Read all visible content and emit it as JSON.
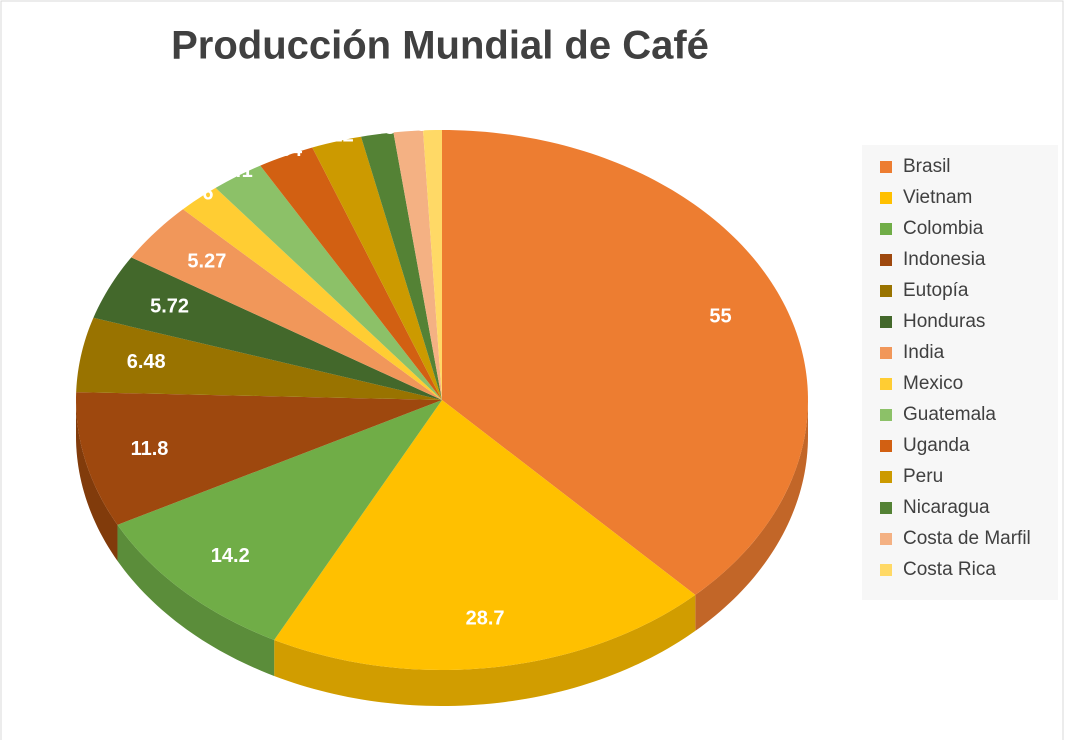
{
  "chart_data": {
    "type": "pie",
    "title": "Producción Mundial de Café",
    "categories": [
      "Brasil",
      "Vietnam",
      "Colombia",
      "Indonesia",
      "Eutopía",
      "Honduras",
      "India",
      "Mexico",
      "Guatemala",
      "Uganda",
      "Peru",
      "Nicaragua",
      "Costa de Marfil",
      "Costa Rica"
    ],
    "values": [
      55,
      28.7,
      14.2,
      11.8,
      6.48,
      5.72,
      5.27,
      2.76,
      3.41,
      3.64,
      3.22,
      2.08,
      1.88,
      1.2
    ],
    "colors": [
      "#ed7d31",
      "#ffc000",
      "#70ad47",
      "#9e480e",
      "#997300",
      "#43682b",
      "#f1975a",
      "#ffcd33",
      "#8cc168",
      "#d26012",
      "#cc9a00",
      "#548235",
      "#f4b183",
      "#ffd966"
    ],
    "legend": "right"
  }
}
